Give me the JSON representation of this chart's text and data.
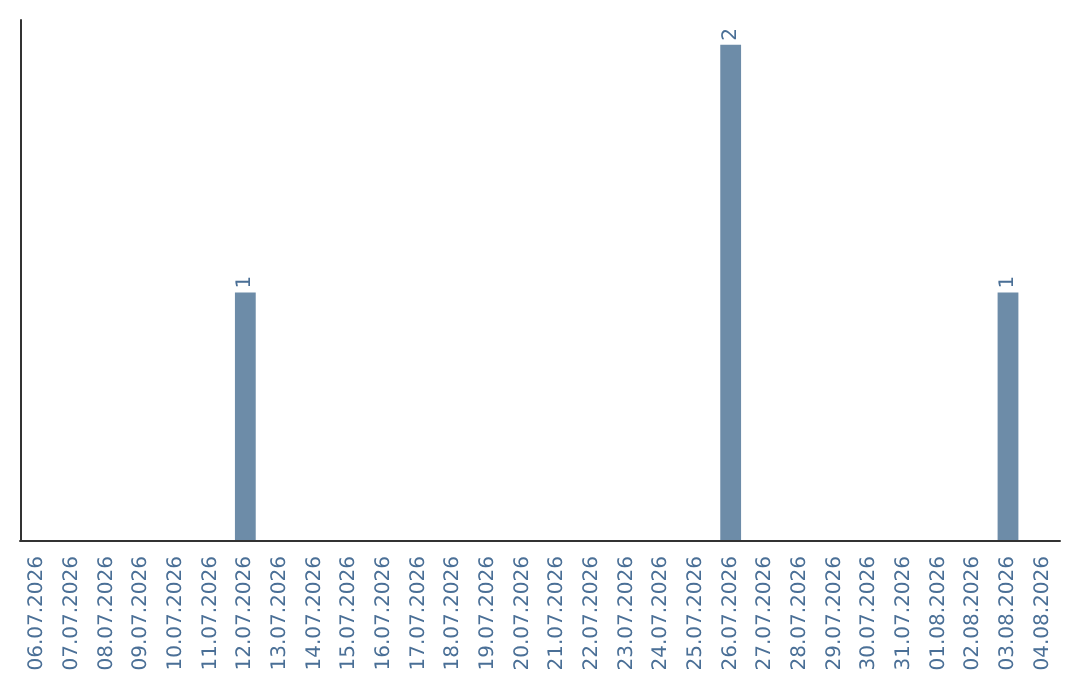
{
  "chart_data": {
    "type": "bar",
    "categories": [
      "06.07.2026",
      "07.07.2026",
      "08.07.2026",
      "09.07.2026",
      "10.07.2026",
      "11.07.2026",
      "12.07.2026",
      "13.07.2026",
      "14.07.2026",
      "15.07.2026",
      "16.07.2026",
      "17.07.2026",
      "18.07.2026",
      "19.07.2026",
      "20.07.2026",
      "21.07.2026",
      "22.07.2026",
      "23.07.2026",
      "24.07.2026",
      "25.07.2026",
      "26.07.2026",
      "27.07.2026",
      "28.07.2026",
      "29.07.2026",
      "30.07.2026",
      "31.07.2026",
      "01.08.2026",
      "02.08.2026",
      "03.08.2026",
      "04.08.2026"
    ],
    "values": [
      0,
      0,
      0,
      0,
      0,
      0,
      1,
      0,
      0,
      0,
      0,
      0,
      0,
      0,
      0,
      0,
      0,
      0,
      0,
      0,
      2,
      0,
      0,
      0,
      0,
      0,
      0,
      0,
      1,
      0
    ],
    "color": "#6d8ca8",
    "ylim": [
      0,
      2.1
    ],
    "value_labels": [
      null,
      null,
      null,
      null,
      null,
      null,
      "1",
      null,
      null,
      null,
      null,
      null,
      null,
      null,
      null,
      null,
      null,
      null,
      null,
      null,
      "2",
      null,
      null,
      null,
      null,
      null,
      null,
      null,
      "1",
      null
    ],
    "grid": false,
    "tick_labels": "x"
  }
}
